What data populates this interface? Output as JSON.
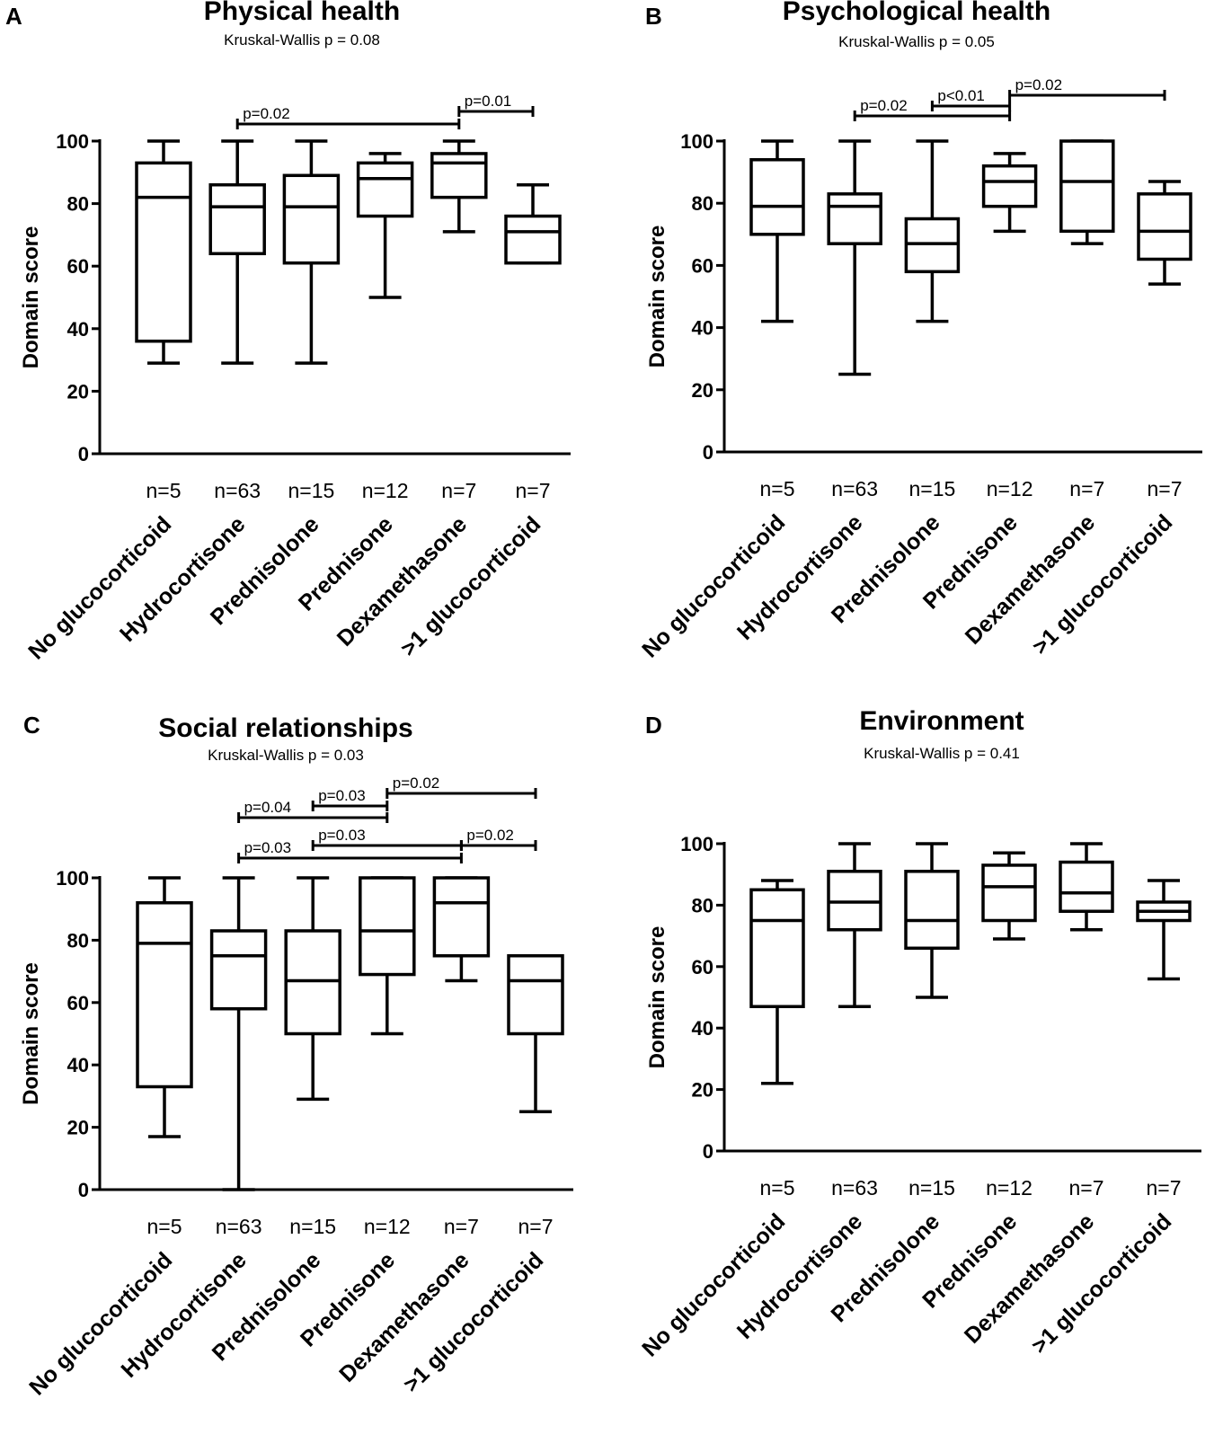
{
  "chart_data": [
    {
      "panel": "A",
      "type": "box",
      "title": "Physical health",
      "subtitle": "Kruskal-Wallis p = 0.08",
      "ylabel": "Domain score",
      "ylim": [
        0,
        100
      ],
      "yticks": [
        0,
        20,
        40,
        60,
        80,
        100
      ],
      "categories": [
        "No glucocorticoid",
        "Hydrocortisone",
        "Prednisolone",
        "Prednisone",
        "Dexamethasone",
        ">1 glucocorticoid"
      ],
      "n_labels": [
        "n=5",
        "n=63",
        "n=15",
        "n=12",
        "n=7",
        "n=7"
      ],
      "boxes": [
        {
          "min": 29,
          "q1": 36,
          "median": 82,
          "q3": 93,
          "max": 100
        },
        {
          "min": 29,
          "q1": 64,
          "median": 79,
          "q3": 86,
          "max": 100
        },
        {
          "min": 29,
          "q1": 61,
          "median": 79,
          "q3": 89,
          "max": 100
        },
        {
          "min": 50,
          "q1": 76,
          "median": 88,
          "q3": 93,
          "max": 96
        },
        {
          "min": 71,
          "q1": 82,
          "median": 93,
          "q3": 96,
          "max": 100
        },
        {
          "min": 61,
          "q1": 61,
          "median": 71,
          "q3": 76,
          "max": 86
        }
      ],
      "comparisons": [
        {
          "from": 1,
          "to": 4,
          "label": "p=0.02",
          "level": 0
        },
        {
          "from": 4,
          "to": 5,
          "label": "p=0.01",
          "level": 1
        }
      ]
    },
    {
      "panel": "B",
      "type": "box",
      "title": "Psychological health",
      "subtitle": "Kruskal-Wallis p = 0.05",
      "ylabel": "Domain score",
      "ylim": [
        0,
        100
      ],
      "yticks": [
        0,
        20,
        40,
        60,
        80,
        100
      ],
      "categories": [
        "No glucocorticoid",
        "Hydrocortisone",
        "Prednisolone",
        "Prednisone",
        "Dexamethasone",
        ">1 glucocorticoid"
      ],
      "n_labels": [
        "n=5",
        "n=63",
        "n=15",
        "n=12",
        "n=7",
        "n=7"
      ],
      "boxes": [
        {
          "min": 42,
          "q1": 70,
          "median": 79,
          "q3": 94,
          "max": 100
        },
        {
          "min": 25,
          "q1": 67,
          "median": 79,
          "q3": 83,
          "max": 100
        },
        {
          "min": 42,
          "q1": 58,
          "median": 67,
          "q3": 75,
          "max": 100
        },
        {
          "min": 71,
          "q1": 79,
          "median": 87,
          "q3": 92,
          "max": 96
        },
        {
          "min": 67,
          "q1": 71,
          "median": 87,
          "q3": 100,
          "max": 100
        },
        {
          "min": 54,
          "q1": 62,
          "median": 71,
          "q3": 83,
          "max": 87
        }
      ],
      "comparisons": [
        {
          "from": 1,
          "to": 3,
          "label": "p=0.02",
          "level": 0
        },
        {
          "from": 2,
          "to": 3,
          "label": "p<0.01",
          "level": 1
        },
        {
          "from": 3,
          "to": 5,
          "label": "p=0.02",
          "level": 2
        }
      ]
    },
    {
      "panel": "C",
      "type": "box",
      "title": "Social relationships",
      "subtitle": "Kruskal-Wallis p = 0.03",
      "ylabel": "Domain score",
      "ylim": [
        0,
        100
      ],
      "yticks": [
        0,
        20,
        40,
        60,
        80,
        100
      ],
      "categories": [
        "No glucocorticoid",
        "Hydrocortisone",
        "Prednisolone",
        "Prednisone",
        "Dexamethasone",
        ">1 glucocorticoid"
      ],
      "n_labels": [
        "n=5",
        "n=63",
        "n=15",
        "n=12",
        "n=7",
        "n=7"
      ],
      "boxes": [
        {
          "min": 17,
          "q1": 33,
          "median": 79,
          "q3": 92,
          "max": 100
        },
        {
          "min": 0,
          "q1": 58,
          "median": 75,
          "q3": 83,
          "max": 100
        },
        {
          "min": 29,
          "q1": 50,
          "median": 67,
          "q3": 83,
          "max": 100
        },
        {
          "min": 50,
          "q1": 69,
          "median": 83,
          "q3": 100,
          "max": 100
        },
        {
          "min": 67,
          "q1": 75,
          "median": 92,
          "q3": 100,
          "max": 100
        },
        {
          "min": 25,
          "q1": 50,
          "median": 67,
          "q3": 75,
          "max": 75
        }
      ],
      "comparisons": [
        {
          "from": 1,
          "to": 4,
          "label": "p=0.03",
          "level": 0
        },
        {
          "from": 2,
          "to": 4,
          "label": "p=0.03",
          "level": 1
        },
        {
          "from": 4,
          "to": 5,
          "label": "p=0.02",
          "level": 1
        },
        {
          "from": 1,
          "to": 3,
          "label": "p=0.04",
          "level": 2
        },
        {
          "from": 2,
          "to": 3,
          "label": "p=0.03",
          "level": 3
        },
        {
          "from": 3,
          "to": 5,
          "label": "p=0.02",
          "level": 4
        }
      ]
    },
    {
      "panel": "D",
      "type": "box",
      "title": "Environment",
      "subtitle": "Kruskal-Wallis p = 0.41",
      "ylabel": "Domain score",
      "ylim": [
        0,
        100
      ],
      "yticks": [
        0,
        20,
        40,
        60,
        80,
        100
      ],
      "categories": [
        "No glucocorticoid",
        "Hydrocortisone",
        "Prednisolone",
        "Prednisone",
        "Dexamethasone",
        ">1 glucocorticoid"
      ],
      "n_labels": [
        "n=5",
        "n=63",
        "n=15",
        "n=12",
        "n=7",
        "n=7"
      ],
      "boxes": [
        {
          "min": 22,
          "q1": 47,
          "median": 75,
          "q3": 85,
          "max": 88
        },
        {
          "min": 47,
          "q1": 72,
          "median": 81,
          "q3": 91,
          "max": 100
        },
        {
          "min": 50,
          "q1": 66,
          "median": 75,
          "q3": 91,
          "max": 100
        },
        {
          "min": 69,
          "q1": 75,
          "median": 86,
          "q3": 93,
          "max": 97
        },
        {
          "min": 72,
          "q1": 78,
          "median": 84,
          "q3": 94,
          "max": 100
        },
        {
          "min": 56,
          "q1": 75,
          "median": 78,
          "q3": 81,
          "max": 88
        }
      ],
      "comparisons": []
    }
  ]
}
